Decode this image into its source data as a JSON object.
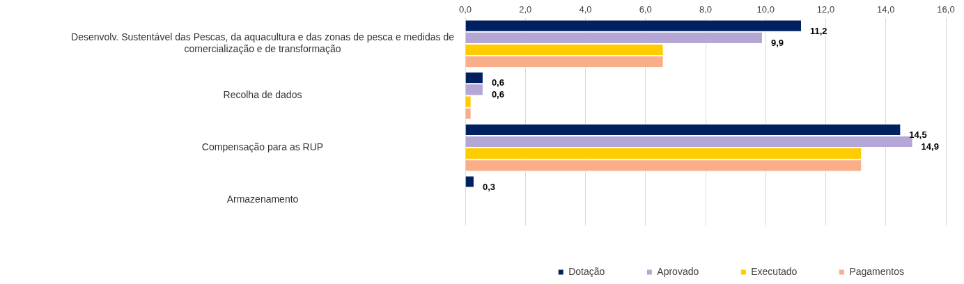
{
  "chart_data": {
    "type": "bar",
    "orientation": "horizontal",
    "categories": [
      "Desenvolv. Sustentável das Pescas, da aquacultura e das zonas de pesca e medidas de comercialização e de transformação",
      "Recolha de dados",
      "Compensação para as RUP",
      "Armazenamento"
    ],
    "series": [
      {
        "name": "Dotação",
        "color": "#002060",
        "values": [
          11.2,
          0.6,
          14.5,
          0.3
        ],
        "value_labels": [
          "11,2",
          "0,6",
          "14,5",
          "0,3"
        ]
      },
      {
        "name": "Aprovado",
        "color": "#b4a7d6",
        "values": [
          9.9,
          0.6,
          14.9,
          null
        ],
        "value_labels": [
          "9,9",
          "0,6",
          "14,9",
          null
        ]
      },
      {
        "name": "Executado",
        "color": "#ffcc00",
        "values": [
          6.6,
          0.2,
          13.2,
          null
        ]
      },
      {
        "name": "Pagamentos",
        "color": "#f9ad89",
        "values": [
          6.6,
          0.2,
          13.2,
          null
        ]
      }
    ],
    "xlim": [
      0,
      16
    ],
    "xticks": [
      {
        "value": 0,
        "label": "0,0"
      },
      {
        "value": 2,
        "label": "2,0"
      },
      {
        "value": 4,
        "label": "4,0"
      },
      {
        "value": 6,
        "label": "6,0"
      },
      {
        "value": 8,
        "label": "8,0"
      },
      {
        "value": 10,
        "label": "10,0"
      },
      {
        "value": 12,
        "label": "12,0"
      },
      {
        "value": 14,
        "label": "14,0"
      },
      {
        "value": 16,
        "label": "16,0"
      }
    ],
    "grid": "x",
    "legend": "bottom"
  }
}
